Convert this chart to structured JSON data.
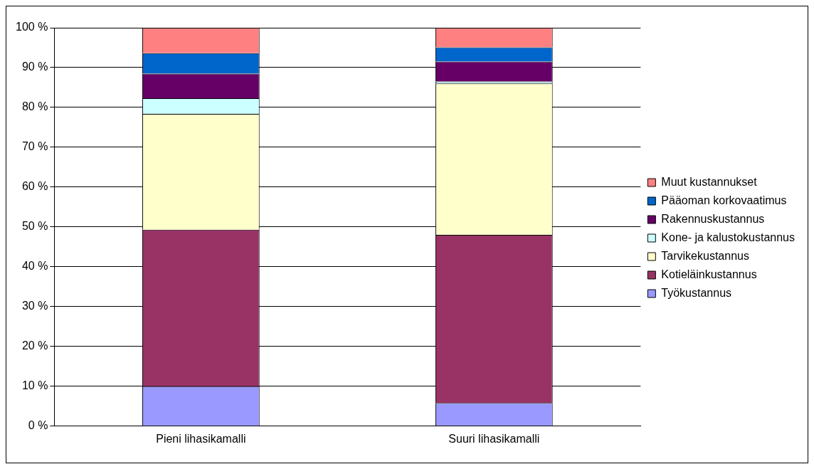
{
  "chart_data": {
    "type": "bar",
    "stacked": true,
    "categories": [
      "Pieni lihasikamalli",
      "Suuri lihasikamalli"
    ],
    "series": [
      {
        "name": "Työkustannus",
        "color": "#9999ff",
        "values": [
          10.0,
          5.8
        ]
      },
      {
        "name": "Kotieläinkustannus",
        "color": "#993366",
        "values": [
          39.3,
          42.2
        ]
      },
      {
        "name": "Tarvikekustannus",
        "color": "#ffffcc",
        "values": [
          29.1,
          38.0
        ]
      },
      {
        "name": "Kone- ja kalustokustannus",
        "color": "#ccffff",
        "values": [
          3.9,
          0.5
        ]
      },
      {
        "name": "Rakennuskustannus",
        "color": "#660066",
        "values": [
          6.2,
          5.0
        ]
      },
      {
        "name": "Pääoman korkovaatimus",
        "color": "#0066cc",
        "values": [
          5.1,
          3.6
        ]
      },
      {
        "name": "Muut kustannukset",
        "color": "#ff8080",
        "values": [
          6.4,
          4.9
        ]
      }
    ],
    "ylim": [
      0,
      100
    ],
    "yticks": [
      {
        "value": 0,
        "label": "0 %"
      },
      {
        "value": 10,
        "label": "10 %"
      },
      {
        "value": 20,
        "label": "20 %"
      },
      {
        "value": 30,
        "label": "30 %"
      },
      {
        "value": 40,
        "label": "40 %"
      },
      {
        "value": 50,
        "label": "50 %"
      },
      {
        "value": 60,
        "label": "60 %"
      },
      {
        "value": 70,
        "label": "70 %"
      },
      {
        "value": 80,
        "label": "80 %"
      },
      {
        "value": 90,
        "label": "90 %"
      },
      {
        "value": 100,
        "label": "100 %"
      }
    ],
    "grid": "y",
    "legend": "right"
  }
}
